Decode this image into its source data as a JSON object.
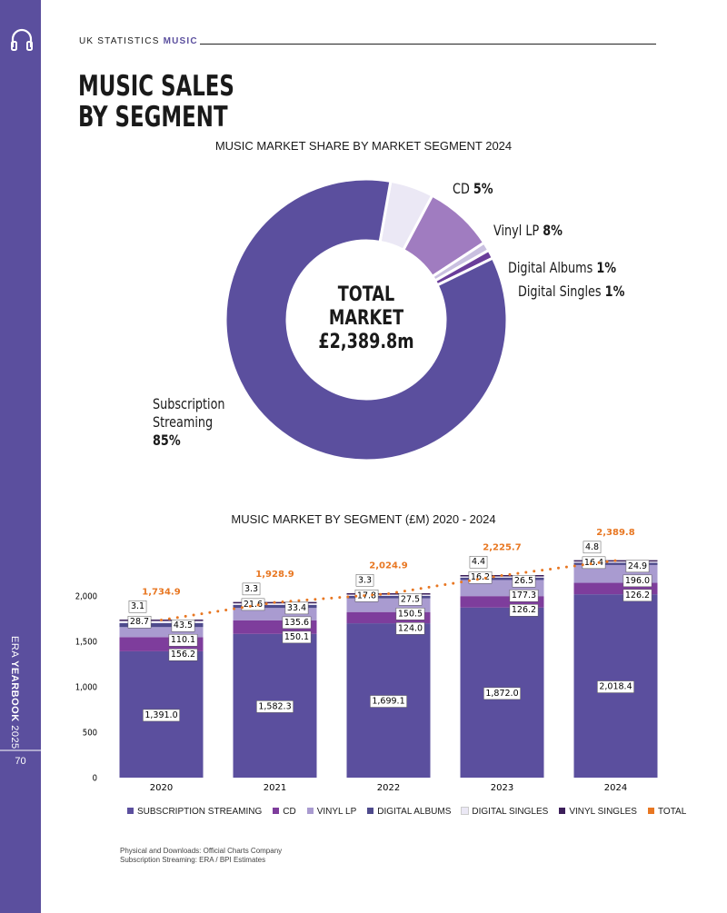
{
  "sidebar": {
    "label_parts": [
      "ERA",
      "YEARBOOK",
      "2025"
    ],
    "page_number": "70"
  },
  "header": {
    "section": "UK STATISTICS",
    "topic": "MUSIC"
  },
  "title": "MUSIC SALES BY SEGMENT",
  "chart_data": [
    {
      "type": "pie",
      "title": "MUSIC MARKET SHARE BY MARKET SEGMENT 2024",
      "categories": [
        "CD",
        "Vinyl LP",
        "Digital Albums",
        "Digital Singles",
        "Subscription Streaming"
      ],
      "values": [
        5,
        8,
        1,
        1,
        85
      ],
      "value_labels": [
        "5%",
        "8%",
        "1%",
        "1%",
        "85%"
      ],
      "colors": [
        "#ebe8f5",
        "#a07cc0",
        "#c9c0e0",
        "#6a3d9a",
        "#5b4f9e"
      ],
      "center_label": [
        "TOTAL",
        "MARKET",
        "£2,389.8m"
      ]
    },
    {
      "type": "bar",
      "stacked": true,
      "title": "MUSIC MARKET BY SEGMENT (£M) 2020 - 2024",
      "categories": [
        "2020",
        "2021",
        "2022",
        "2023",
        "2024"
      ],
      "ylim": [
        0,
        2400
      ],
      "yticks": [
        0,
        500,
        {
          "value": 1000,
          "label": "1,000"
        },
        {
          "value": 1500,
          "label": "1,500"
        },
        {
          "value": 2000,
          "label": "2,000"
        }
      ],
      "series": [
        {
          "name": "SUBSCRIPTION STREAMING",
          "color": "#5b4f9e",
          "values": [
            1391.0,
            1582.3,
            1699.1,
            1872.0,
            2018.4
          ],
          "value_labels": [
            "1,391.0",
            "1,582.3",
            "1,699.1",
            "1,872.0",
            "2,018.4"
          ]
        },
        {
          "name": "CD",
          "color": "#7e3d9c",
          "values": [
            156.2,
            150.1,
            124.0,
            126.2,
            126.2
          ],
          "value_labels": [
            "156.2",
            "150.1",
            "124.0",
            "126.2",
            "126.2"
          ]
        },
        {
          "name": "VINYL LP",
          "color": "#a99bd0",
          "values": [
            110.1,
            135.6,
            150.5,
            177.3,
            196.0
          ],
          "value_labels": [
            "110.1",
            "135.6",
            "150.5",
            "177.3",
            "196.0"
          ]
        },
        {
          "name": "DIGITAL ALBUMS",
          "color": "#4e4a8c",
          "values": [
            43.5,
            33.4,
            27.5,
            26.5,
            24.9
          ],
          "value_labels": [
            "43.5",
            "33.4",
            "27.5",
            "26.5",
            "24.9"
          ]
        },
        {
          "name": "DIGITAL SINGLES",
          "color": "#ebe8f5",
          "values": [
            28.7,
            21.6,
            17.8,
            16.2,
            16.4
          ],
          "value_labels": [
            "28.7",
            "21.6",
            "17.8",
            "16.2",
            "16.4"
          ]
        },
        {
          "name": "VINYL SINGLES",
          "color": "#3c1f5a",
          "values": [
            3.1,
            3.3,
            3.3,
            4.4,
            4.8
          ],
          "value_labels": [
            "3.1",
            "3.3",
            "3.3",
            "4.4",
            "4.8"
          ]
        },
        {
          "name": "TOTAL",
          "type": "line",
          "color": "#e87722",
          "values": [
            1734.9,
            1928.9,
            2024.9,
            2225.7,
            2389.8
          ],
          "value_labels": [
            "1,734.9",
            "1,928.9",
            "2,024.9",
            "2,225.7",
            "2,389.8"
          ]
        }
      ]
    }
  ],
  "footer": {
    "sources": [
      "Physical and Downloads: Official Charts Company",
      "Subscription Streaming: ERA / BPI Estimates"
    ]
  }
}
